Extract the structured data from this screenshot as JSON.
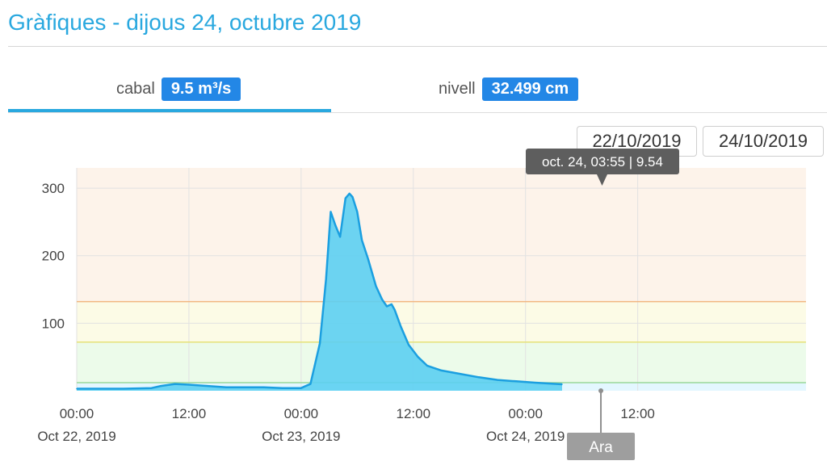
{
  "header": {
    "title": "Gràfiques - dijous 24, octubre 2019"
  },
  "tabs": [
    {
      "label": "cabal",
      "badge": "9.5 m³/s",
      "active": true
    },
    {
      "label": "nivell",
      "badge": "32.499 cm",
      "active": false
    }
  ],
  "date_range": {
    "from": "22/10/2019",
    "to": "24/10/2019"
  },
  "tooltip": {
    "text": "oct. 24, 03:55 | 9.54"
  },
  "now_marker": {
    "label": "Ara"
  },
  "colors": {
    "accent": "#29a8df",
    "badge": "#2387e6",
    "series": "#5ccff2"
  },
  "chart_data": {
    "type": "area",
    "title": "",
    "xlabel": "",
    "ylabel": "",
    "ylim": [
      0,
      330
    ],
    "xlim": [
      "2019-10-22 00:00",
      "2019-10-25 06:00"
    ],
    "y_ticks": [
      "100",
      "200",
      "300"
    ],
    "x_ticks": [
      {
        "time": "2019-10-22 00:00",
        "line1": "00:00",
        "line2": "Oct 22, 2019"
      },
      {
        "time": "2019-10-22 12:00",
        "line1": "12:00",
        "line2": ""
      },
      {
        "time": "2019-10-23 00:00",
        "line1": "00:00",
        "line2": "Oct 23, 2019"
      },
      {
        "time": "2019-10-23 12:00",
        "line1": "12:00",
        "line2": ""
      },
      {
        "time": "2019-10-24 00:00",
        "line1": "00:00",
        "line2": "Oct 24, 2019"
      },
      {
        "time": "2019-10-24 12:00",
        "line1": "12:00",
        "line2": ""
      }
    ],
    "threshold_bands": [
      {
        "from": 0,
        "to": 12,
        "color": "#e3f7ff"
      },
      {
        "from": 12,
        "to": 72,
        "color": "#ecfbea"
      },
      {
        "from": 72,
        "to": 132,
        "color": "#fcfbe6"
      },
      {
        "from": 132,
        "to": 330,
        "color": "#fdf3ea"
      }
    ],
    "threshold_lines": [
      {
        "value": 12,
        "color": "#9ad89a"
      },
      {
        "value": 72,
        "color": "#e6e278"
      },
      {
        "value": 132,
        "color": "#f2b680"
      }
    ],
    "series": [
      {
        "points": [
          [
            "2019-10-22 00:00",
            3
          ],
          [
            "2019-10-22 05:00",
            3
          ],
          [
            "2019-10-22 08:00",
            4
          ],
          [
            "2019-10-22 09:00",
            7
          ],
          [
            "2019-10-22 10:30",
            10
          ],
          [
            "2019-10-22 12:00",
            9
          ],
          [
            "2019-10-22 14:00",
            7
          ],
          [
            "2019-10-22 16:00",
            5
          ],
          [
            "2019-10-22 18:00",
            5
          ],
          [
            "2019-10-22 20:00",
            5
          ],
          [
            "2019-10-22 22:00",
            4
          ],
          [
            "2019-10-23 00:00",
            4
          ],
          [
            "2019-10-23 01:00",
            10
          ],
          [
            "2019-10-23 02:00",
            70
          ],
          [
            "2019-10-23 02:40",
            165
          ],
          [
            "2019-10-23 03:10",
            265
          ],
          [
            "2019-10-23 03:40",
            245
          ],
          [
            "2019-10-23 04:10",
            228
          ],
          [
            "2019-10-23 04:45",
            285
          ],
          [
            "2019-10-23 05:10",
            292
          ],
          [
            "2019-10-23 05:30",
            287
          ],
          [
            "2019-10-23 06:00",
            265
          ],
          [
            "2019-10-23 06:30",
            223
          ],
          [
            "2019-10-23 07:10",
            195
          ],
          [
            "2019-10-23 08:00",
            155
          ],
          [
            "2019-10-23 08:40",
            135
          ],
          [
            "2019-10-23 09:10",
            125
          ],
          [
            "2019-10-23 09:40",
            128
          ],
          [
            "2019-10-23 10:00",
            120
          ],
          [
            "2019-10-23 10:40",
            95
          ],
          [
            "2019-10-23 11:30",
            68
          ],
          [
            "2019-10-23 12:30",
            50
          ],
          [
            "2019-10-23 13:30",
            37
          ],
          [
            "2019-10-23 15:00",
            30
          ],
          [
            "2019-10-23 17:00",
            25
          ],
          [
            "2019-10-23 19:00",
            20
          ],
          [
            "2019-10-23 21:00",
            16
          ],
          [
            "2019-10-23 23:00",
            14
          ],
          [
            "2019-10-24 01:00",
            12
          ],
          [
            "2019-10-24 03:55",
            9.54
          ]
        ]
      }
    ]
  }
}
